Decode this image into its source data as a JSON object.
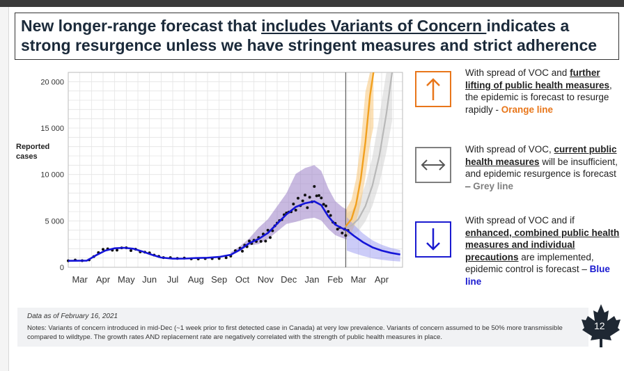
{
  "title_line1_pre": "New longer-range forecast that ",
  "title_line1_ul": "includes Variants of Concern ",
  "title_line1_post": "indicates a",
  "title_line2": "strong resurgence unless we have stringent measures and strict adherence",
  "chart_data": {
    "type": "line",
    "ylabel": "Reported cases",
    "ylim": [
      0,
      21000
    ],
    "yticks": [
      0,
      5000,
      10000,
      15000,
      20000
    ],
    "ytick_labels": [
      "0",
      "5 000",
      "10 000",
      "15 000",
      "20 000"
    ],
    "xtick_labels": [
      "Mar",
      "Apr",
      "May",
      "Jun",
      "Jul",
      "Aug",
      "Sep",
      "Oct",
      "Nov",
      "Dec",
      "Jan",
      "Feb",
      "Mar",
      "Apr"
    ],
    "grid": true,
    "forecast_start": "Feb 16",
    "observed_cases": [
      [
        0,
        700
      ],
      [
        0.3,
        700
      ],
      [
        0.6,
        710
      ],
      [
        0.9,
        750
      ],
      [
        1.1,
        1100
      ],
      [
        1.3,
        1500
      ],
      [
        1.5,
        1800
      ],
      [
        1.7,
        1950
      ],
      [
        1.9,
        2000
      ],
      [
        2.1,
        1950
      ],
      [
        2.3,
        2100
      ],
      [
        2.5,
        2150
      ],
      [
        2.7,
        2000
      ],
      [
        2.9,
        1950
      ],
      [
        3.1,
        1700
      ],
      [
        3.3,
        1550
      ],
      [
        3.5,
        1400
      ],
      [
        3.7,
        1250
      ],
      [
        3.9,
        1100
      ],
      [
        4.1,
        1000
      ],
      [
        4.4,
        950
      ],
      [
        4.7,
        900
      ],
      [
        5.0,
        920
      ],
      [
        5.3,
        980
      ],
      [
        5.6,
        1000
      ],
      [
        5.9,
        1020
      ],
      [
        6.2,
        1000
      ],
      [
        6.5,
        1080
      ],
      [
        6.8,
        1150
      ],
      [
        7.0,
        1300
      ],
      [
        7.2,
        1600
      ],
      [
        7.4,
        1900
      ],
      [
        7.6,
        2300
      ],
      [
        7.8,
        2700
      ],
      [
        8.0,
        2850
      ],
      [
        8.2,
        3000
      ],
      [
        8.4,
        3200
      ],
      [
        8.6,
        3600
      ],
      [
        8.8,
        4200
      ],
      [
        9.0,
        4900
      ],
      [
        9.2,
        5400
      ],
      [
        9.4,
        5900
      ],
      [
        9.6,
        6400
      ],
      [
        9.8,
        6800
      ],
      [
        10.0,
        6900
      ],
      [
        10.2,
        7100
      ],
      [
        10.4,
        7300
      ],
      [
        10.6,
        8200
      ],
      [
        10.8,
        7600
      ],
      [
        11.0,
        6700
      ],
      [
        11.2,
        5800
      ],
      [
        11.4,
        4800
      ],
      [
        11.6,
        4200
      ],
      [
        11.8,
        3900
      ],
      [
        11.95,
        3700
      ]
    ],
    "series": [
      {
        "name": "Orange line",
        "color": "#f2a01e",
        "values": [
          [
            11.95,
            4400
          ],
          [
            12.2,
            5200
          ],
          [
            12.4,
            6800
          ],
          [
            12.6,
            9500
          ],
          [
            12.8,
            13500
          ],
          [
            13.0,
            18500
          ],
          [
            13.15,
            21000
          ]
        ]
      },
      {
        "name": "Grey line",
        "color": "#b8b8b8",
        "values": [
          [
            11.95,
            4300
          ],
          [
            12.2,
            4500
          ],
          [
            12.5,
            5200
          ],
          [
            12.8,
            6600
          ],
          [
            13.1,
            8800
          ],
          [
            13.4,
            12000
          ],
          [
            13.7,
            16500
          ],
          [
            13.95,
            21000
          ]
        ]
      },
      {
        "name": "Blue line",
        "color": "#1414d8",
        "values": [
          [
            0,
            700
          ],
          [
            0.8,
            720
          ],
          [
            1.2,
            1300
          ],
          [
            1.6,
            1800
          ],
          [
            2.0,
            2050
          ],
          [
            2.4,
            2100
          ],
          [
            2.8,
            2000
          ],
          [
            3.2,
            1700
          ],
          [
            3.6,
            1350
          ],
          [
            4.0,
            1050
          ],
          [
            4.5,
            930
          ],
          [
            5.0,
            940
          ],
          [
            5.5,
            1000
          ],
          [
            6.0,
            1030
          ],
          [
            6.5,
            1120
          ],
          [
            7.0,
            1350
          ],
          [
            7.4,
            1900
          ],
          [
            7.8,
            2600
          ],
          [
            8.2,
            3050
          ],
          [
            8.6,
            3700
          ],
          [
            9.0,
            4700
          ],
          [
            9.4,
            5700
          ],
          [
            9.8,
            6500
          ],
          [
            10.2,
            6900
          ],
          [
            10.6,
            7100
          ],
          [
            10.9,
            6700
          ],
          [
            11.2,
            5500
          ],
          [
            11.5,
            4600
          ],
          [
            11.8,
            4200
          ],
          [
            12.0,
            4000
          ],
          [
            12.3,
            3400
          ],
          [
            12.7,
            2700
          ],
          [
            13.1,
            2150
          ],
          [
            13.5,
            1800
          ],
          [
            13.9,
            1550
          ],
          [
            14.3,
            1380
          ]
        ]
      }
    ]
  },
  "panel": {
    "item1_pre": "With spread of VOC and ",
    "item1_bold": "further lifting of public health measures",
    "item1_post": ", the epidemic is forecast to resurge rapidly - ",
    "item1_color_label": "Orange line",
    "item2_pre": "With spread of VOC, ",
    "item2_bold": "current public health measures",
    "item2_post": " will be insufficient, and epidemic resurgence is forecast – ",
    "item2_color_label": "Grey line",
    "item3_pre": "With spread of VOC and if ",
    "item3_bold": "enhanced, combined public health measures and individual precautions",
    "item3_post": " are implemented, epidemic control is forecast – ",
    "item3_color_label": "Blue line",
    "orange": "#e8761a",
    "grey": "#7f7f7f",
    "blue": "#1a1ad0"
  },
  "footer": {
    "date": "Data as of February 16, 2021",
    "notes": "Notes: Variants of concern introduced in mid-Dec (~1 week prior to first detected case in Canada) at very low prevalence. Variants of concern assumed to be 50% more transmissible compared to wildtype. The growth rates AND replacement rate are negatively correlated with the strength of public health measures in place."
  },
  "page_number": "12"
}
